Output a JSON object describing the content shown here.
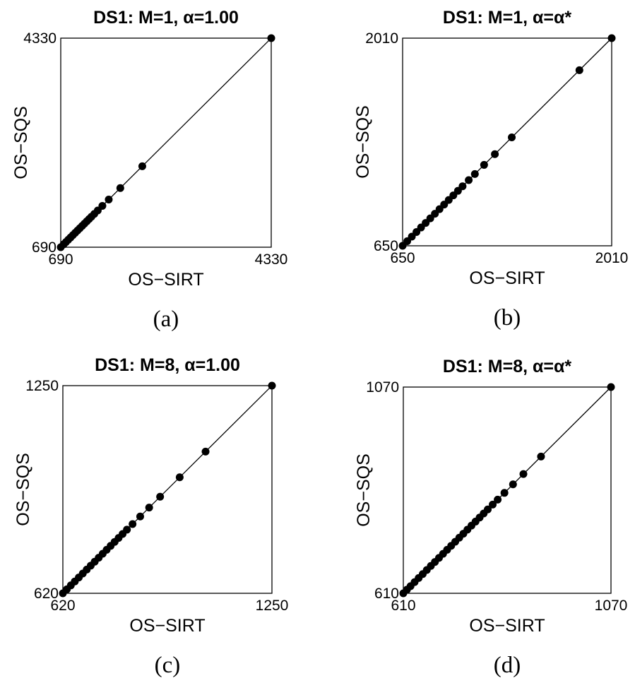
{
  "chart_data": [
    {
      "type": "scatter",
      "panel_label": "(a)",
      "title": "DS1: M=1, α=1.00",
      "xlabel": "OS−SIRT",
      "ylabel": "OS−SQS",
      "xlim": [
        690,
        4330
      ],
      "ylim": [
        690,
        4330
      ],
      "xticks": [
        "690",
        "4330"
      ],
      "yticks": [
        "690",
        "4330"
      ],
      "grid": false,
      "identity_line": true,
      "points": [
        [
          4330,
          4330
        ],
        [
          2100,
          2100
        ],
        [
          1720,
          1720
        ],
        [
          1520,
          1520
        ],
        [
          1410,
          1410
        ],
        [
          1330,
          1330
        ],
        [
          1270,
          1270
        ],
        [
          1220,
          1220
        ],
        [
          1180,
          1180
        ],
        [
          1140,
          1140
        ],
        [
          1100,
          1100
        ],
        [
          1060,
          1060
        ],
        [
          1020,
          1020
        ],
        [
          980,
          980
        ],
        [
          940,
          940
        ],
        [
          900,
          900
        ],
        [
          860,
          860
        ],
        [
          820,
          820
        ],
        [
          780,
          780
        ],
        [
          740,
          740
        ],
        [
          690,
          690
        ]
      ]
    },
    {
      "type": "scatter",
      "panel_label": "(b)",
      "title": "DS1: M=1, α=α*",
      "xlabel": "OS−SIRT",
      "ylabel": "OS−SQS",
      "xlim": [
        650,
        2010
      ],
      "ylim": [
        650,
        2010
      ],
      "xticks": [
        "650",
        "2010"
      ],
      "yticks": [
        "650",
        "2010"
      ],
      "grid": false,
      "identity_line": true,
      "points": [
        [
          2010,
          2010
        ],
        [
          1800,
          1800
        ],
        [
          1360,
          1360
        ],
        [
          1250,
          1250
        ],
        [
          1180,
          1180
        ],
        [
          1120,
          1120
        ],
        [
          1080,
          1080
        ],
        [
          1040,
          1040
        ],
        [
          1010,
          1010
        ],
        [
          980,
          980
        ],
        [
          950,
          950
        ],
        [
          920,
          920
        ],
        [
          890,
          890
        ],
        [
          860,
          860
        ],
        [
          830,
          830
        ],
        [
          800,
          800
        ],
        [
          770,
          770
        ],
        [
          740,
          740
        ],
        [
          710,
          710
        ],
        [
          680,
          680
        ],
        [
          650,
          650
        ]
      ]
    },
    {
      "type": "scatter",
      "panel_label": "(c)",
      "title": "DS1: M=8, α=1.00",
      "xlabel": "OS−SIRT",
      "ylabel": "OS−SQS",
      "xlim": [
        620,
        1250
      ],
      "ylim": [
        620,
        1250
      ],
      "xticks": [
        "620",
        "1250"
      ],
      "yticks": [
        "620",
        "1250"
      ],
      "grid": false,
      "identity_line": true,
      "points": [
        [
          1250,
          1250
        ],
        [
          1050,
          1050
        ],
        [
          972,
          972
        ],
        [
          913,
          913
        ],
        [
          880,
          880
        ],
        [
          853,
          853
        ],
        [
          830,
          830
        ],
        [
          813,
          813
        ],
        [
          800,
          800
        ],
        [
          788,
          788
        ],
        [
          776,
          776
        ],
        [
          764,
          764
        ],
        [
          752,
          752
        ],
        [
          740,
          740
        ],
        [
          728,
          728
        ],
        [
          716,
          716
        ],
        [
          704,
          704
        ],
        [
          692,
          692
        ],
        [
          680,
          680
        ],
        [
          668,
          668
        ],
        [
          656,
          656
        ],
        [
          644,
          644
        ],
        [
          632,
          632
        ],
        [
          620,
          620
        ]
      ]
    },
    {
      "type": "scatter",
      "panel_label": "(d)",
      "title": "DS1: M=8, α=α*",
      "xlabel": "OS−SIRT",
      "ylabel": "OS−SQS",
      "xlim": [
        610,
        1070
      ],
      "ylim": [
        610,
        1070
      ],
      "xticks": [
        "610",
        "1070"
      ],
      "yticks": [
        "610",
        "1070"
      ],
      "grid": false,
      "identity_line": true,
      "points": [
        [
          1070,
          1070
        ],
        [
          915,
          915
        ],
        [
          876,
          876
        ],
        [
          853,
          853
        ],
        [
          834,
          834
        ],
        [
          819,
          819
        ],
        [
          808,
          808
        ],
        [
          797,
          797
        ],
        [
          788,
          788
        ],
        [
          779,
          779
        ],
        [
          770,
          770
        ],
        [
          761,
          761
        ],
        [
          752,
          752
        ],
        [
          743,
          743
        ],
        [
          734,
          734
        ],
        [
          725,
          725
        ],
        [
          716,
          716
        ],
        [
          707,
          707
        ],
        [
          698,
          698
        ],
        [
          689,
          689
        ],
        [
          680,
          680
        ],
        [
          671,
          671
        ],
        [
          662,
          662
        ],
        [
          653,
          653
        ],
        [
          644,
          644
        ],
        [
          635,
          635
        ],
        [
          626,
          626
        ],
        [
          618,
          618
        ],
        [
          610,
          610
        ]
      ]
    }
  ]
}
